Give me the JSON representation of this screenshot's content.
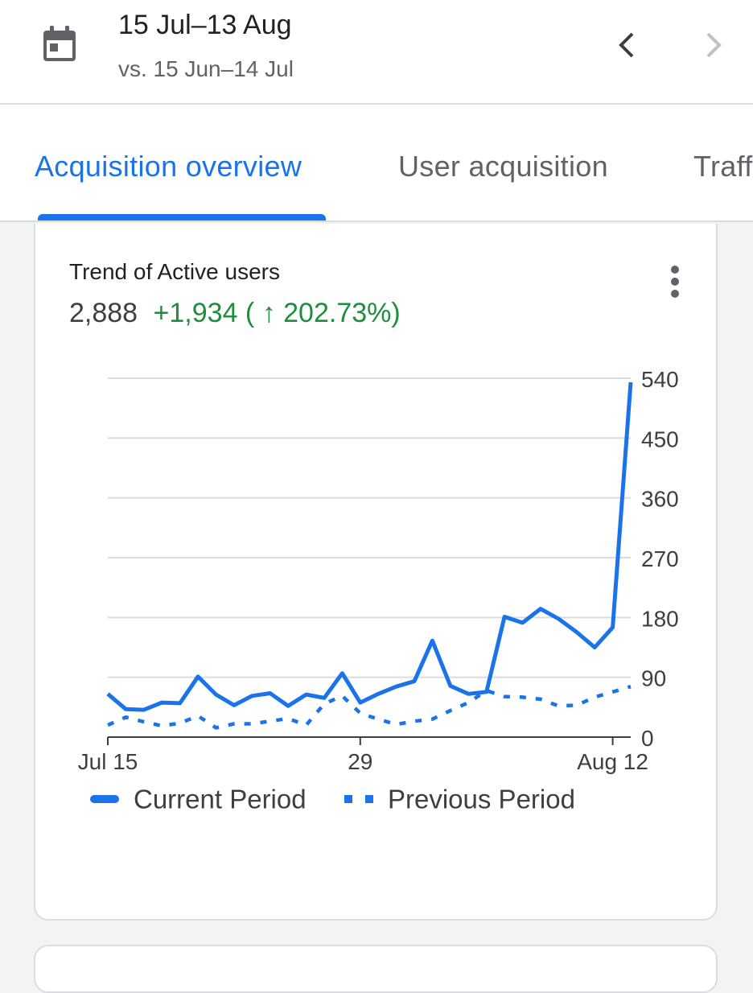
{
  "header": {
    "date_range": "15 Jul–13 Aug",
    "compare_range": "vs. 15 Jun–14 Jul",
    "icons": {
      "calendar": "calendar-icon",
      "prev": "chevron-left-icon",
      "next": "chevron-right-icon"
    }
  },
  "tabs": [
    {
      "label": "Acquisition overview",
      "active": true
    },
    {
      "label": "User acquisition",
      "active": false
    },
    {
      "label": "Traffic acquisition",
      "active": false
    }
  ],
  "card": {
    "title": "Trend of Active users",
    "metric_value": "2,888",
    "metric_change": "+1,934 ( ↑ 202.73%)",
    "accent_color": "#1a73e8",
    "positive_color": "#1e8e3e"
  },
  "chart_data": {
    "type": "line",
    "x_ticks": [
      "Jul 15",
      "29",
      "Aug 12"
    ],
    "y_ticks": [
      0,
      90,
      180,
      270,
      360,
      450,
      540
    ],
    "ylim": [
      0,
      540
    ],
    "grid": true,
    "legend_placement": "bottom",
    "series": [
      {
        "name": "Current Period",
        "style": "solid",
        "color": "#1a73e8",
        "values": [
          65,
          42,
          41,
          52,
          51,
          91,
          64,
          48,
          62,
          66,
          47,
          64,
          59,
          96,
          52,
          65,
          76,
          84,
          145,
          77,
          65,
          68,
          181,
          172,
          193,
          178,
          158,
          135,
          165,
          534
        ]
      },
      {
        "name": "Previous Period",
        "style": "dotted",
        "color": "#1a73e8",
        "values": [
          18,
          30,
          23,
          17,
          21,
          32,
          14,
          20,
          20,
          24,
          28,
          18,
          50,
          62,
          36,
          27,
          19,
          24,
          27,
          40,
          52,
          70,
          61,
          60,
          57,
          47,
          48,
          60,
          68,
          76
        ]
      }
    ]
  }
}
